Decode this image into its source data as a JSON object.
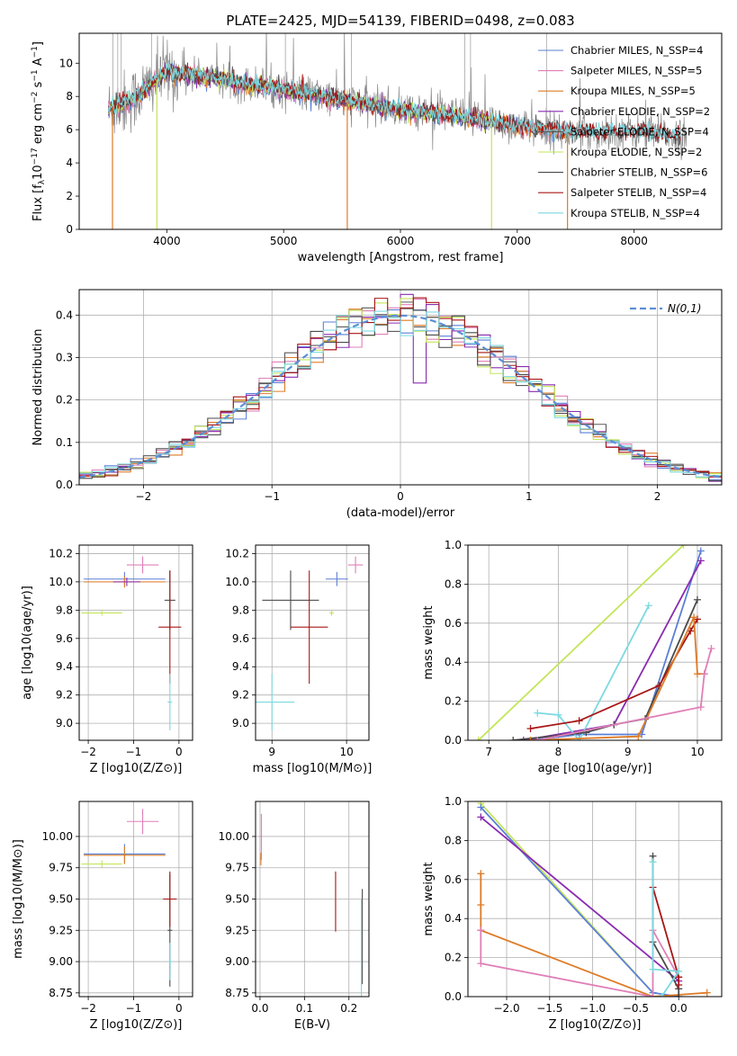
{
  "colors": {
    "Chabrier MILES": "#5b7fd6",
    "Salpeter MILES": "#e07fb8",
    "Kroupa MILES": "#de7b27",
    "Chabrier ELODIE": "#8a2bb0",
    "Salpeter ELODIE": "#5a5a5a",
    "Kroupa ELODIE": "#c3e55a",
    "Chabrier STELIB": "#4a4a4a",
    "Salpeter STELIB": "#a81616",
    "Kroupa STELIB": "#7cd9e0"
  },
  "chart_data": [
    {
      "id": "spectrum",
      "type": "line",
      "title": "PLATE=2425, MJD=54139, FIBERID=0498, z=0.083",
      "xlabel": "wavelength [Angstrom, rest frame]",
      "ylabel": "Flux [f_λ 10^-17 erg cm^-2 s^-1 A^-1]",
      "xlim": [
        3250,
        8750
      ],
      "ylim": [
        0,
        11.8
      ],
      "xticks": [
        "4000",
        "5000",
        "6000",
        "7000",
        "8000"
      ],
      "yticks": [
        "0",
        "2",
        "4",
        "6",
        "8",
        "10"
      ],
      "grid": false,
      "legend_position": "top-right",
      "legend": [
        {
          "label": "Chabrier MILES, N_SSP=4",
          "color": "#5b7fd6"
        },
        {
          "label": "Salpeter MILES, N_SSP=5",
          "color": "#e07fb8"
        },
        {
          "label": "Kroupa MILES, N_SSP=5",
          "color": "#de7b27"
        },
        {
          "label": "Chabrier ELODIE, N_SSP=2",
          "color": "#8a2bb0"
        },
        {
          "label": "Salpeter ELODIE, N_SSP=4",
          "color": "#5a5a5a"
        },
        {
          "label": "Kroupa ELODIE, N_SSP=2",
          "color": "#c3e55a"
        },
        {
          "label": "Chabrier STELIB, N_SSP=6",
          "color": "#4a4a4a"
        },
        {
          "label": "Salpeter STELIB, N_SSP=4",
          "color": "#a81616"
        },
        {
          "label": "Kroupa STELIB, N_SSP=4",
          "color": "#7cd9e0"
        }
      ],
      "continuum_points": [
        [
          3500,
          7.2
        ],
        [
          3700,
          7.8
        ],
        [
          4000,
          9.5
        ],
        [
          4200,
          9.3
        ],
        [
          4500,
          9.0
        ],
        [
          5000,
          8.4
        ],
        [
          5500,
          7.8
        ],
        [
          6000,
          7.2
        ],
        [
          6500,
          6.8
        ],
        [
          7000,
          6.2
        ],
        [
          7500,
          5.8
        ],
        [
          8000,
          5.9
        ],
        [
          8400,
          5.6
        ]
      ],
      "data_xlim": [
        3500,
        8450
      ],
      "model_xlim": [
        3500,
        8400
      ]
    },
    {
      "id": "residuals",
      "type": "histogram",
      "xlabel": "(data-model)/error",
      "ylabel": "Normed distribution",
      "xlim": [
        -2.5,
        2.5
      ],
      "ylim": [
        0,
        0.46
      ],
      "xticks": [
        "−2",
        "−1",
        "0",
        "1",
        "2"
      ],
      "yticks": [
        "0.0",
        "0.1",
        "0.2",
        "0.3",
        "0.4"
      ],
      "grid": true,
      "legend": [
        {
          "label": "N(0,1)",
          "color": "#5b8fd6"
        }
      ],
      "legend_position": "top-right",
      "bins": 50
    },
    {
      "id": "age-vs-Z",
      "type": "errorbar",
      "xlabel": "Z [log10(Z/Z⊙)]",
      "ylabel": "age [log10(age/yr)]",
      "xlim": [
        -2.2,
        0.3
      ],
      "ylim": [
        8.88,
        10.26
      ],
      "xticks": [
        "−2",
        "−1",
        "0"
      ],
      "yticks": [
        "9.0",
        "9.2",
        "9.4",
        "9.6",
        "9.8",
        "10.0",
        "10.2"
      ],
      "grid": true,
      "series": [
        {
          "name": "Chabrier MILES",
          "x": -1.2,
          "y": 10.02,
          "xerr": 0.9,
          "yerr": 0.05
        },
        {
          "name": "Kroupa MILES",
          "x": -1.2,
          "y": 10.0,
          "xerr": 0.9,
          "yerr": 0.04
        },
        {
          "name": "Salpeter MILES",
          "x": -0.8,
          "y": 10.12,
          "xerr": 0.35,
          "yerr": 0.06
        },
        {
          "name": "Chabrier ELODIE",
          "x": -1.15,
          "y": 10.0,
          "xerr": 0.3,
          "yerr": 0.03
        },
        {
          "name": "Kroupa ELODIE",
          "x": -1.7,
          "y": 9.78,
          "xerr": 0.45,
          "yerr": 0.02
        },
        {
          "name": "Chabrier STELIB",
          "x": -0.2,
          "y": 9.87,
          "xerr": 0.12,
          "yerr": 0.21
        },
        {
          "name": "Salpeter STELIB",
          "x": -0.2,
          "y": 9.68,
          "xerr": 0.25,
          "yerr": 0.4
        },
        {
          "name": "Kroupa STELIB",
          "x": -0.2,
          "y": 9.15,
          "xerr": 0.05,
          "yerr": 0.2
        }
      ]
    },
    {
      "id": "age-vs-mass",
      "type": "errorbar",
      "xlabel": "mass [log10(M/M⊙)]",
      "ylabel": "",
      "xlim": [
        8.78,
        10.3
      ],
      "ylim": [
        8.88,
        10.26
      ],
      "xticks": [
        "9",
        "10"
      ],
      "yticks": [
        "9.0",
        "9.2",
        "9.4",
        "9.6",
        "9.8",
        "10.0",
        "10.2"
      ],
      "grid": true,
      "series": [
        {
          "name": "Chabrier STELIB",
          "x": 9.25,
          "y": 9.87,
          "xerr": 0.38,
          "yerr": 0.21
        },
        {
          "name": "Salpeter STELIB",
          "x": 9.5,
          "y": 9.68,
          "xerr": 0.25,
          "yerr": 0.4
        },
        {
          "name": "Kroupa STELIB",
          "x": 9.0,
          "y": 9.15,
          "xerr": 0.3,
          "yerr": 0.2
        },
        {
          "name": "Chabrier MILES",
          "x": 9.87,
          "y": 10.02,
          "xerr": 0.15,
          "yerr": 0.05
        },
        {
          "name": "Salpeter MILES",
          "x": 10.12,
          "y": 10.12,
          "xerr": 0.1,
          "yerr": 0.06
        },
        {
          "name": "Kroupa ELODIE",
          "x": 9.8,
          "y": 9.78,
          "xerr": 0.03,
          "yerr": 0.02
        }
      ]
    },
    {
      "id": "massweight-vs-age",
      "type": "line",
      "xlabel": "age [log10(age/yr)]",
      "ylabel": "mass weight",
      "xlim": [
        6.7,
        10.35
      ],
      "ylim": [
        0,
        1.0
      ],
      "xticks": [
        "7",
        "8",
        "9",
        "10"
      ],
      "yticks": [
        "0.0",
        "0.2",
        "0.4",
        "0.6",
        "0.8",
        "1.0"
      ],
      "grid": true,
      "series": [
        {
          "name": "Kroupa ELODIE",
          "x": [
            6.85,
            9.8
          ],
          "y": [
            0.0,
            1.0
          ]
        },
        {
          "name": "Chabrier MILES",
          "x": [
            7.6,
            8.3,
            9.2,
            10.05
          ],
          "y": [
            0.0,
            0.03,
            0.03,
            0.97
          ]
        },
        {
          "name": "Chabrier ELODIE",
          "x": [
            7.5,
            8.8,
            10.05
          ],
          "y": [
            0.0,
            0.08,
            0.92
          ]
        },
        {
          "name": "Kroupa STELIB",
          "x": [
            7.7,
            8.0,
            8.3,
            9.3
          ],
          "y": [
            0.14,
            0.13,
            0.0,
            0.69
          ]
        },
        {
          "name": "Chabrier STELIB",
          "x": [
            7.35,
            8.4,
            8.8,
            9.25,
            10.0
          ],
          "y": [
            0.0,
            0.04,
            0.08,
            0.11,
            0.72
          ]
        },
        {
          "name": "Salpeter STELIB",
          "x": [
            7.6,
            8.3,
            9.45,
            9.9,
            10.0
          ],
          "y": [
            0.06,
            0.1,
            0.28,
            0.56,
            0.62
          ]
        },
        {
          "name": "Kroupa MILES",
          "x": [
            7.6,
            9.15,
            9.95,
            10.0,
            10.1
          ],
          "y": [
            0.0,
            0.02,
            0.63,
            0.34,
            0.34
          ]
        },
        {
          "name": "Salpeter MILES",
          "x": [
            7.7,
            10.05,
            10.1,
            10.2
          ],
          "y": [
            0.0,
            0.17,
            0.34,
            0.47
          ]
        }
      ]
    },
    {
      "id": "mass-vs-Z",
      "type": "errorbar",
      "xlabel": "Z [log10(Z/Z⊙)]",
      "ylabel": "mass [log10(M/M⊙)]",
      "xlim": [
        -2.2,
        0.3
      ],
      "ylim": [
        8.72,
        10.28
      ],
      "xticks": [
        "−2",
        "−1",
        "0"
      ],
      "yticks": [
        "8.75",
        "9.00",
        "9.25",
        "9.50",
        "9.75",
        "10.00"
      ],
      "grid": true,
      "series": [
        {
          "name": "Chabrier MILES",
          "x": -1.2,
          "y": 9.86,
          "xerr": 0.9,
          "yerr": 0.08
        },
        {
          "name": "Kroupa MILES",
          "x": -1.2,
          "y": 9.85,
          "xerr": 0.9,
          "yerr": 0.07
        },
        {
          "name": "Salpeter MILES",
          "x": -0.8,
          "y": 10.12,
          "xerr": 0.35,
          "yerr": 0.1
        },
        {
          "name": "Kroupa ELODIE",
          "x": -1.7,
          "y": 9.78,
          "xerr": 0.45,
          "yerr": 0.03
        },
        {
          "name": "Chabrier STELIB",
          "x": -0.2,
          "y": 9.25,
          "xerr": 0.05,
          "yerr": 0.45
        },
        {
          "name": "Salpeter STELIB",
          "x": -0.2,
          "y": 9.5,
          "xerr": 0.15,
          "yerr": 0.22
        },
        {
          "name": "Kroupa STELIB",
          "x": -0.2,
          "y": 9.0,
          "xerr": 0.05,
          "yerr": 0.15
        }
      ]
    },
    {
      "id": "mass-vs-EBV",
      "type": "errorbar",
      "xlabel": "E(B-V)",
      "ylabel": "",
      "xlim": [
        -0.01,
        0.245
      ],
      "ylim": [
        8.72,
        10.28
      ],
      "xticks": [
        "0.0",
        "0.1",
        "0.2"
      ],
      "yticks": [
        "8.75",
        "9.00",
        "9.25",
        "9.50",
        "9.75",
        "10.00"
      ],
      "grid": true,
      "series": [
        {
          "name": "Salpeter MILES",
          "x": 0.003,
          "y": 10.0,
          "xerr": 0.002,
          "yerr": 0.18
        },
        {
          "name": "Kroupa MILES",
          "x": 0.002,
          "y": 9.82,
          "xerr": 0.002,
          "yerr": 0.05
        },
        {
          "name": "Salpeter STELIB",
          "x": 0.17,
          "y": 9.48,
          "xerr": 0.0,
          "yerr": 0.24
        },
        {
          "name": "Chabrier STELIB",
          "x": 0.23,
          "y": 9.2,
          "xerr": 0.0,
          "yerr": 0.38
        },
        {
          "name": "Kroupa STELIB",
          "x": 0.228,
          "y": 9.1,
          "xerr": 0.0,
          "yerr": 0.4
        }
      ]
    },
    {
      "id": "massweight-vs-Z",
      "type": "line",
      "xlabel": "Z [log10(Z/Z⊙)]",
      "ylabel": "mass weight",
      "xlim": [
        -2.45,
        0.5
      ],
      "ylim": [
        0,
        1.0
      ],
      "xticks": [
        "−2.0",
        "−1.5",
        "−1.0",
        "−0.5",
        "0.0"
      ],
      "yticks": [
        "0.0",
        "0.2",
        "0.4",
        "0.6",
        "0.8",
        "1.0"
      ],
      "grid": true,
      "series": [
        {
          "name": "Kroupa ELODIE",
          "x": [
            -2.3,
            -0.3
          ],
          "y": [
            0.99,
            0.02
          ]
        },
        {
          "name": "Chabrier MILES",
          "x": [
            -2.3,
            -0.3,
            0.0
          ],
          "y": [
            0.97,
            0.02,
            0.0
          ]
        },
        {
          "name": "Chabrier ELODIE",
          "x": [
            -2.3,
            0.0
          ],
          "y": [
            0.92,
            0.08
          ]
        },
        {
          "name": "Kroupa MILES",
          "x": [
            -2.3,
            -2.3,
            -2.3,
            -0.3,
            0.33
          ],
          "y": [
            0.63,
            0.47,
            0.34,
            0.0,
            0.02
          ]
        },
        {
          "name": "Salpeter MILES",
          "x": [
            -2.3,
            -2.3,
            -0.3,
            -0.3,
            0.0
          ],
          "y": [
            0.34,
            0.17,
            0.0,
            0.34,
            0.1
          ]
        },
        {
          "name": "Chabrier STELIB",
          "x": [
            -0.3,
            -0.3,
            0.0,
            0.0
          ],
          "y": [
            0.72,
            0.28,
            0.04,
            0.0
          ]
        },
        {
          "name": "Salpeter STELIB",
          "x": [
            -0.3,
            0.0,
            0.0
          ],
          "y": [
            0.56,
            0.1,
            0.06
          ]
        },
        {
          "name": "Kroupa STELIB",
          "x": [
            -0.3,
            -0.3,
            0.0,
            -0.2
          ],
          "y": [
            0.69,
            0.14,
            0.13,
            0.0
          ]
        }
      ]
    }
  ]
}
